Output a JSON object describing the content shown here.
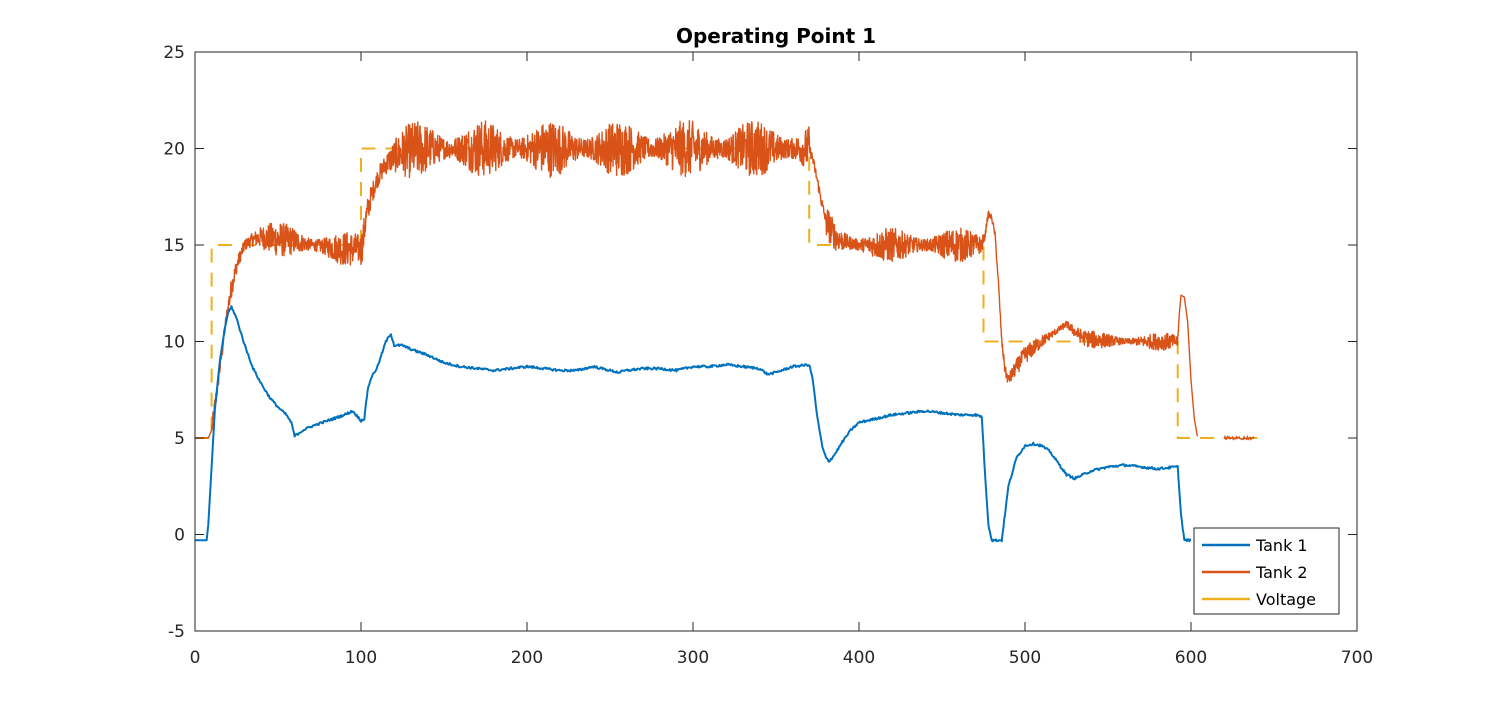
{
  "chart_data": {
    "type": "line",
    "title": "Operating Point 1",
    "xlabel": "",
    "ylabel": "",
    "xlim": [
      0,
      700
    ],
    "ylim": [
      -5,
      25
    ],
    "xticks": [
      "0",
      "100",
      "200",
      "300",
      "400",
      "500",
      "600",
      "700"
    ],
    "yticks": [
      "-5",
      "0",
      "5",
      "10",
      "15",
      "20",
      "25"
    ],
    "grid": false,
    "legend_position": "bottom-right",
    "colors": {
      "tank1": "#0072BD",
      "tank2": "#D95319",
      "voltage": "#EDB120",
      "axis": "#262626"
    },
    "series": [
      {
        "name": "Tank 1",
        "color": "#0072BD",
        "x": [
          0,
          7,
          8,
          10,
          12,
          15,
          18,
          20,
          22,
          25,
          30,
          35,
          40,
          45,
          50,
          55,
          58,
          60,
          65,
          70,
          80,
          90,
          95,
          98,
          100,
          102,
          104,
          106,
          110,
          115,
          118,
          120,
          125,
          130,
          140,
          150,
          160,
          170,
          180,
          190,
          200,
          210,
          220,
          230,
          240,
          250,
          255,
          260,
          270,
          280,
          290,
          300,
          310,
          320,
          330,
          340,
          345,
          350,
          360,
          370,
          372,
          375,
          378,
          380,
          382,
          385,
          390,
          395,
          400,
          410,
          420,
          430,
          440,
          450,
          460,
          470,
          474,
          476,
          478,
          480,
          483,
          486,
          490,
          495,
          500,
          505,
          510,
          515,
          520,
          525,
          530,
          535,
          540,
          550,
          560,
          570,
          580,
          590,
          592,
          594,
          596,
          598,
          600
        ],
        "y": [
          -0.3,
          -0.3,
          0.5,
          3.5,
          6.5,
          9.0,
          10.7,
          11.5,
          11.8,
          11.2,
          9.8,
          8.6,
          7.8,
          7.1,
          6.6,
          6.2,
          5.8,
          5.1,
          5.4,
          5.6,
          5.9,
          6.2,
          6.4,
          6.1,
          5.9,
          6.0,
          7.5,
          8.1,
          8.7,
          10.0,
          10.4,
          9.8,
          9.8,
          9.6,
          9.3,
          8.9,
          8.7,
          8.6,
          8.5,
          8.6,
          8.7,
          8.6,
          8.5,
          8.5,
          8.7,
          8.5,
          8.4,
          8.5,
          8.6,
          8.6,
          8.5,
          8.7,
          8.7,
          8.8,
          8.7,
          8.6,
          8.3,
          8.4,
          8.7,
          8.8,
          8.1,
          6.0,
          4.5,
          4.0,
          3.8,
          4.1,
          4.8,
          5.4,
          5.8,
          6.0,
          6.2,
          6.3,
          6.4,
          6.3,
          6.2,
          6.2,
          6.1,
          3.0,
          0.5,
          -0.3,
          -0.3,
          -0.3,
          2.5,
          4.0,
          4.6,
          4.7,
          4.6,
          4.3,
          3.7,
          3.1,
          2.9,
          3.1,
          3.3,
          3.5,
          3.6,
          3.5,
          3.4,
          3.5,
          3.5,
          1.0,
          -0.3,
          -0.3,
          -0.3
        ]
      },
      {
        "name": "Tank 2",
        "color": "#D95319",
        "noise": [
          [
            10,
            20,
            0.3
          ],
          [
            20,
            100,
            0.6
          ],
          [
            100,
            110,
            0.8
          ],
          [
            110,
            370,
            1.0
          ],
          [
            370,
            380,
            0.2
          ],
          [
            380,
            475,
            0.6
          ],
          [
            475,
            490,
            0.3
          ],
          [
            490,
            592,
            0.3
          ]
        ],
        "x": [
          0,
          8,
          10,
          13,
          16,
          19,
          22,
          25,
          28,
          30,
          35,
          40,
          50,
          60,
          70,
          80,
          90,
          100,
          101,
          103,
          106,
          110,
          115,
          120,
          125,
          130,
          140,
          150,
          160,
          180,
          200,
          220,
          240,
          260,
          280,
          300,
          320,
          340,
          360,
          370,
          372,
          375,
          378,
          380,
          383,
          386,
          390,
          395,
          400,
          420,
          440,
          460,
          474,
          476,
          477,
          478,
          480,
          482,
          484,
          486,
          488,
          490,
          495,
          500,
          510,
          520,
          525,
          530,
          535,
          540,
          560,
          580,
          592,
          593,
          594,
          596,
          598,
          600,
          602,
          604
        ],
        "y": [
          5,
          5,
          5.4,
          7.3,
          9.3,
          11.3,
          12.8,
          13.9,
          14.6,
          15.0,
          15.3,
          15.4,
          15.3,
          15.2,
          15.0,
          14.9,
          14.8,
          14.8,
          15.1,
          16.4,
          17.5,
          18.5,
          19.2,
          19.6,
          19.8,
          19.9,
          20.0,
          20.0,
          20.0,
          20.0,
          20.0,
          20.0,
          20.0,
          20.0,
          20.0,
          20.0,
          20.0,
          20.0,
          20.0,
          20.0,
          19.5,
          18.3,
          17.0,
          16.3,
          15.8,
          15.4,
          15.2,
          15.1,
          15.0,
          15.0,
          15.0,
          15.0,
          15.0,
          15.5,
          16.2,
          16.6,
          16.4,
          15.5,
          13.0,
          10.0,
          8.5,
          8.0,
          8.7,
          9.3,
          10.0,
          10.6,
          10.9,
          10.5,
          10.2,
          10.1,
          10.0,
          10.0,
          10.0,
          11.5,
          12.4,
          12.3,
          11.0,
          8.0,
          6.0,
          5.0
        ]
      },
      {
        "name": "Voltage",
        "color": "#EDB120",
        "x": [
          0,
          10,
          10,
          100,
          100,
          370,
          370,
          475,
          475,
          592,
          592,
          640
        ],
        "y": [
          5,
          5,
          15,
          15,
          20,
          20,
          15,
          15,
          10,
          10,
          5,
          5
        ]
      }
    ]
  }
}
